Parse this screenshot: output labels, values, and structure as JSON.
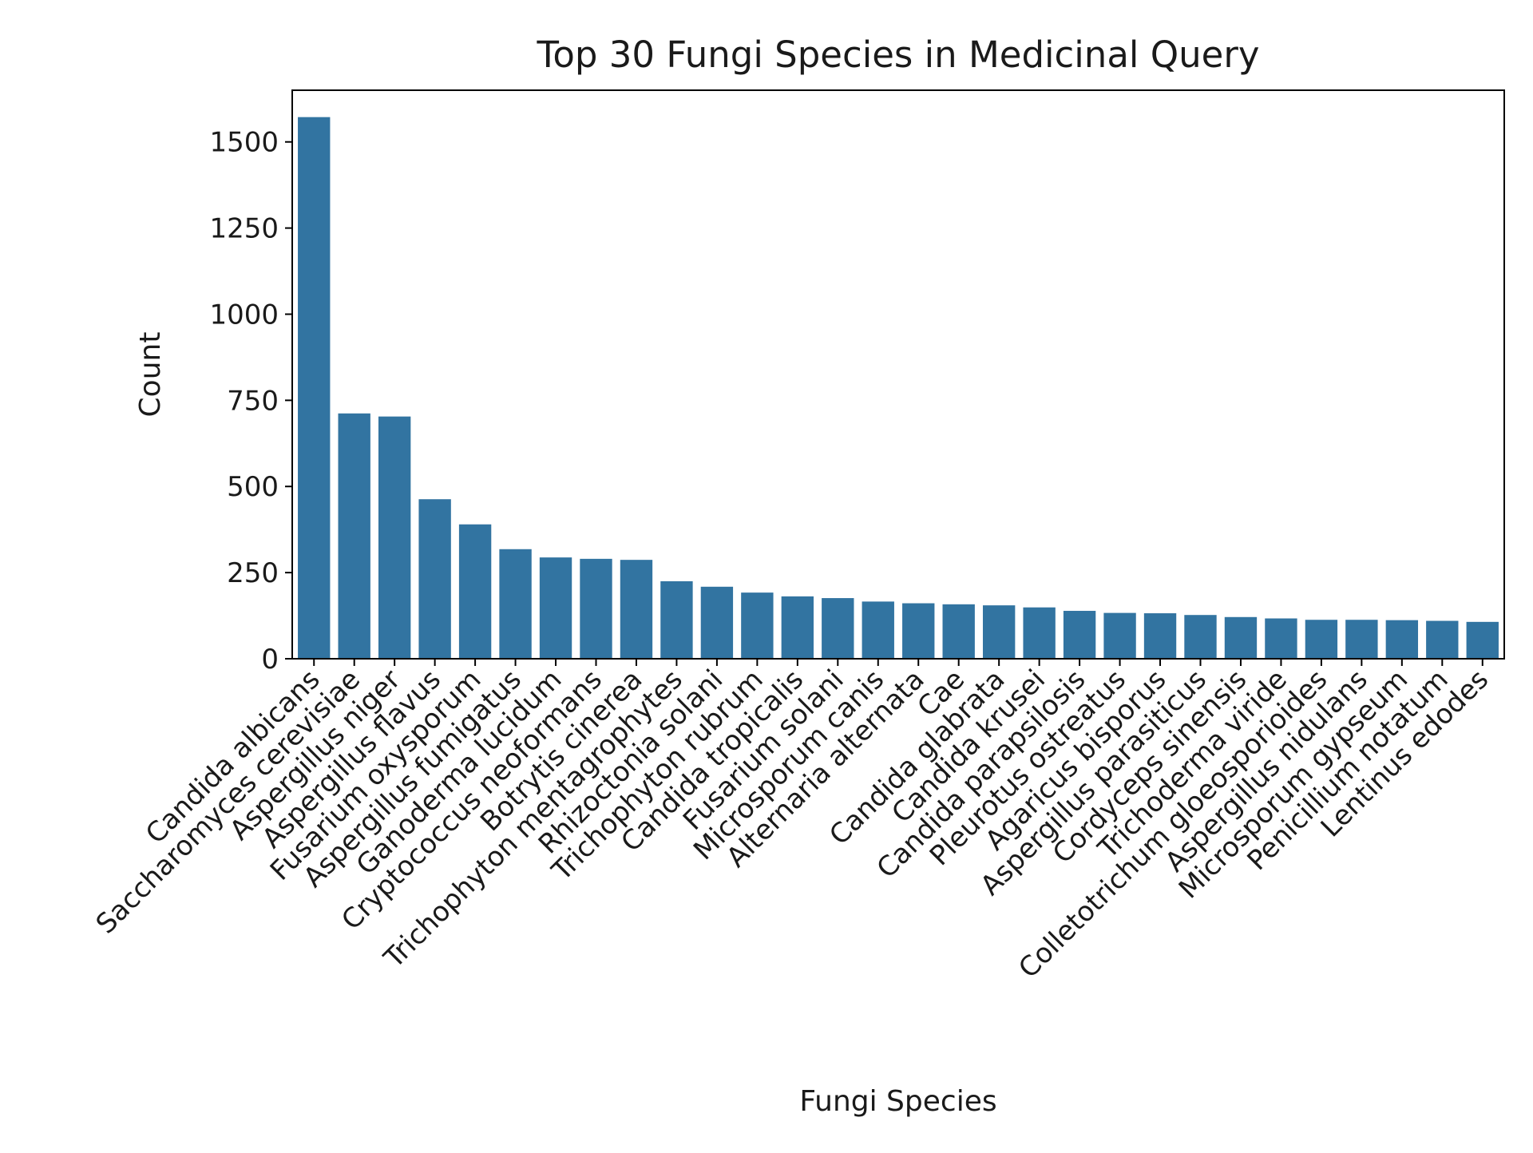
{
  "chart_data": {
    "type": "bar",
    "title": "Top 30 Fungi Species in Medicinal Query",
    "xlabel": "Fungi Species",
    "ylabel": "Count",
    "ylim": [
      0,
      1650
    ],
    "yticks": [
      0,
      250,
      500,
      750,
      1000,
      1250,
      1500
    ],
    "bar_color": "#3274a1",
    "grid": false,
    "categories": [
      "Candida albicans",
      "Saccharomyces cerevisiae",
      "Aspergillus niger",
      "Aspergillus flavus",
      "Fusarium oxysporum",
      "Aspergillus fumigatus",
      "Ganoderma lucidum",
      "Cryptococcus neoformans",
      "Botrytis cinerea",
      "Trichophyton mentagrophytes",
      "Rhizoctonia solani",
      "Trichophyton rubrum",
      "Candida tropicalis",
      "Fusarium solani",
      "Microsporum canis",
      "Alternaria alternata",
      "Cae",
      "Candida glabrata",
      "Candida krusei",
      "Candida parapsilosis",
      "Pleurotus ostreatus",
      "Agaricus bisporus",
      "Aspergillus parasiticus",
      "Cordyceps sinensis",
      "Trichoderma viride",
      "Colletotrichum gloeosporioides",
      "Aspergillus nidulans",
      "Microsporum gypseum",
      "Penicillium notatum",
      "Lentinus edodes"
    ],
    "values": [
      1572,
      712,
      703,
      463,
      390,
      318,
      294,
      290,
      287,
      225,
      209,
      192,
      181,
      176,
      166,
      161,
      158,
      155,
      149,
      139,
      133,
      132,
      127,
      121,
      117,
      113,
      113,
      112,
      110,
      107
    ]
  }
}
